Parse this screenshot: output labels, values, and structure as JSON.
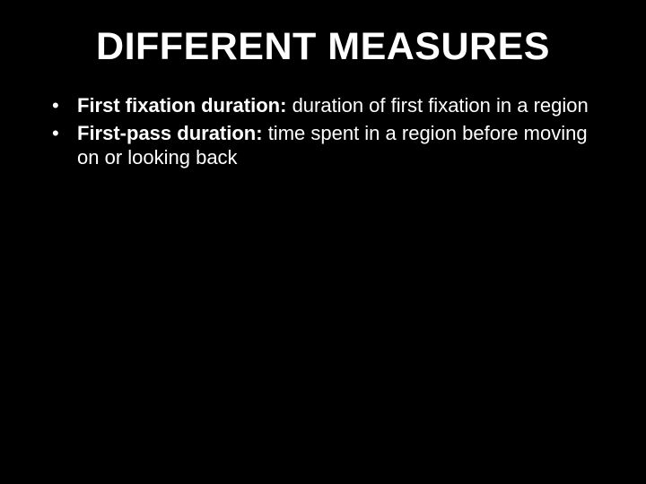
{
  "slide": {
    "background_color": "#000000",
    "text_color": "#ffffff",
    "title": "DIFFERENT MEASURES",
    "title_fontsize": 43,
    "title_weight": 900,
    "body_fontsize": 22,
    "bullets": [
      {
        "term": "First fixation duration:",
        "desc": " duration of first fixation in a region"
      },
      {
        "term": "First-pass duration:",
        "desc": " time spent in a region before moving on or looking back"
      }
    ]
  }
}
